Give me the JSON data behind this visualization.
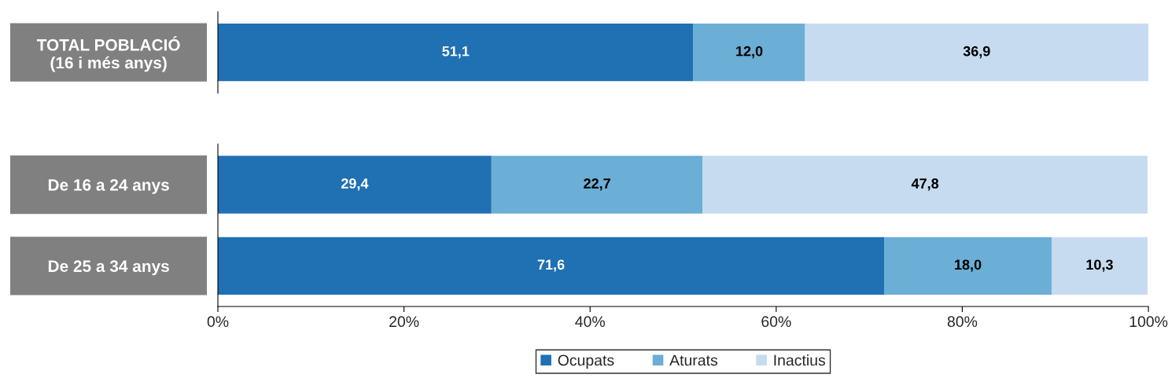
{
  "chart_data": [
    {
      "type": "bar",
      "orientation": "horizontal",
      "stacked": true,
      "categories": [
        "TOTAL POBLACIÓ\n(16 i més anys)"
      ],
      "xlim": [
        0,
        100
      ],
      "tick_labels": "y",
      "series": [
        {
          "color": "#2070b4",
          "values": [
            51.1
          ],
          "value_labels": [
            "51,1"
          ]
        },
        {
          "color": "#6baed6",
          "values": [
            12.0
          ],
          "value_labels": [
            "12,0"
          ]
        },
        {
          "color": "#c6dbef",
          "values": [
            36.9
          ],
          "value_labels": [
            "36,9"
          ]
        }
      ]
    },
    {
      "type": "bar",
      "orientation": "horizontal",
      "stacked": true,
      "categories": [
        "De 16 a 24 anys",
        "De 25 a 34 anys"
      ],
      "xlim": [
        0,
        100
      ],
      "xticks": [
        {
          "value": 0,
          "label": "0%"
        },
        {
          "value": 20,
          "label": "20%"
        },
        {
          "value": 40,
          "label": "40%"
        },
        {
          "value": 60,
          "label": "60%"
        },
        {
          "value": 80,
          "label": "80%"
        },
        {
          "value": 100,
          "label": "100%"
        }
      ],
      "legend": "bottom",
      "series": [
        {
          "name": "Ocupats",
          "color": "#2070b4",
          "values": [
            29.4,
            71.6
          ],
          "value_labels": [
            "29,4",
            "71,6"
          ]
        },
        {
          "name": "Aturats",
          "color": "#6baed6",
          "values": [
            22.7,
            18.0
          ],
          "value_labels": [
            "22,7",
            "18,0"
          ]
        },
        {
          "name": "Inactius",
          "color": "#c6dbef",
          "values": [
            47.8,
            10.3
          ],
          "value_labels": [
            "47,8",
            "10,3"
          ]
        }
      ]
    }
  ]
}
